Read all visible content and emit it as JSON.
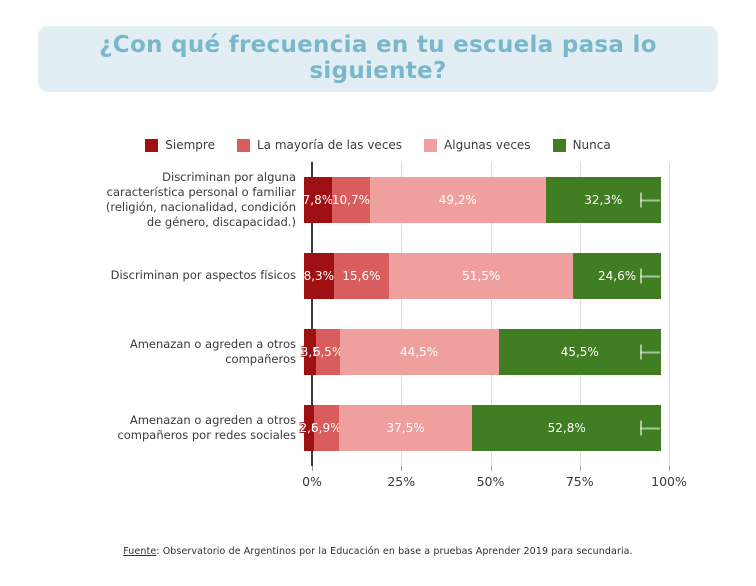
{
  "title": "¿Con qué frecuencia en tu escuela pasa lo siguiente?",
  "title_color": "#79b7cb",
  "title_bg": "#e2eef4",
  "legend": [
    {
      "label": "Siempre",
      "color": "#9e1012"
    },
    {
      "label": "La mayoría de las veces",
      "color": "#d95d5c"
    },
    {
      "label": "Algunas veces",
      "color": "#efa09e"
    },
    {
      "label": "Nunca",
      "color": "#417d22"
    }
  ],
  "chart_data": {
    "type": "bar",
    "subtype": "horizontal-stacked-100",
    "unit": "%",
    "legend_position": "top",
    "grid": "vertical",
    "xlim": [
      0,
      100
    ],
    "series": [
      "Siempre",
      "La mayoría de las veces",
      "Algunas veces",
      "Nunca"
    ],
    "colors": [
      "#9e1012",
      "#d95d5c",
      "#efa09e",
      "#417d22"
    ],
    "categories": [
      "Discriminan por alguna característica personal o familiar (religión, nacionalidad, condición de género, discapacidad.)",
      "Discriminan por aspectos físicos",
      "Amenazan o agreden a otros compañeros",
      "Amenazan o agreden a otros compañeros por redes sociales"
    ],
    "rows": [
      {
        "category": "Discriminan por alguna característica personal o familiar (religión, nacionalidad, condición de género, discapacidad.)",
        "values": [
          7.8,
          10.7,
          49.2,
          32.3
        ],
        "labels": [
          "7,8%",
          "10,7%",
          "49,2%",
          "32,3%"
        ]
      },
      {
        "category": "Discriminan por aspectos físicos",
        "values": [
          8.3,
          15.6,
          51.5,
          24.6
        ],
        "labels": [
          "8,3%",
          "15,6%",
          "51,5%",
          "24,6%"
        ]
      },
      {
        "category": "Amenazan o agreden a otros compañeros",
        "values": [
          3.5,
          6.5,
          44.5,
          45.5
        ],
        "labels": [
          "3,5",
          "6,5%",
          "44,5%",
          "45,5%"
        ]
      },
      {
        "category": "Amenazan o agreden a otros compañeros por redes sociales",
        "values": [
          2.8,
          6.9,
          37.5,
          52.8
        ],
        "labels": [
          "2,8",
          "6,9%",
          "37,5%",
          "52,8%"
        ]
      }
    ],
    "x_ticks": [
      {
        "value": 0,
        "label": "0%"
      },
      {
        "value": 25,
        "label": "25%"
      },
      {
        "value": 50,
        "label": "50%"
      },
      {
        "value": 75,
        "label": "75%"
      },
      {
        "value": 100,
        "label": "100%"
      }
    ]
  },
  "footer": {
    "prefix": "Fuente",
    "rest": ": Observatorio de Argentinos por la Educación en base a pruebas Aprender 2019 para secundaria."
  }
}
